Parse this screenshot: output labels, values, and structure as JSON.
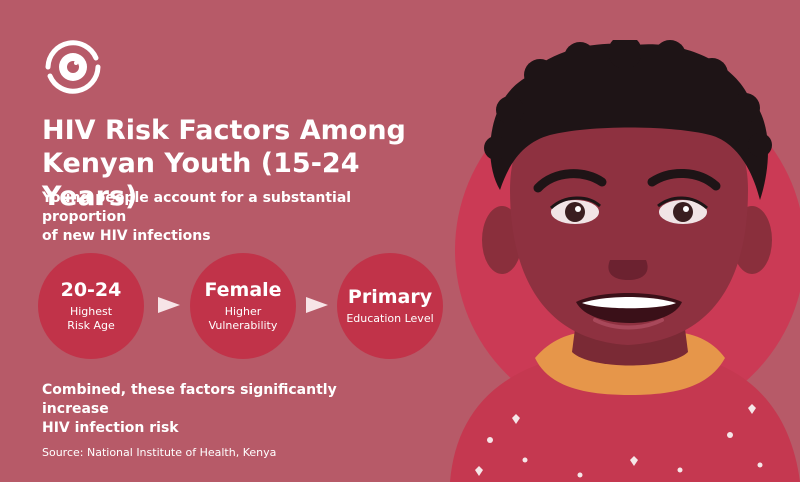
{
  "title": {
    "line1": "HIV Risk Factors Among",
    "line2": "Kenyan Youth (15-24 Years)"
  },
  "subtitle": {
    "line1": "Young people account for a substantial proportion",
    "line2": "of new HIV infections"
  },
  "factors": [
    {
      "value": "20-24",
      "line1": "Highest",
      "line2": "Risk Age"
    },
    {
      "value": "Female",
      "line1": "Higher",
      "line2": "Vulnerability"
    },
    {
      "value": "Primary",
      "line1": "Education Level",
      "line2": ""
    }
  ],
  "combined": {
    "line1": "Combined, these factors significantly increase",
    "line2": "HIV infection risk"
  },
  "source": "Source: National Institute of Health, Kenya",
  "colors": {
    "background": "#b75a68",
    "circle": "#c13349",
    "text": "#ffffff"
  },
  "icons": {
    "logo": "eye-logo-icon",
    "arrow": "triangle-right-icon"
  }
}
